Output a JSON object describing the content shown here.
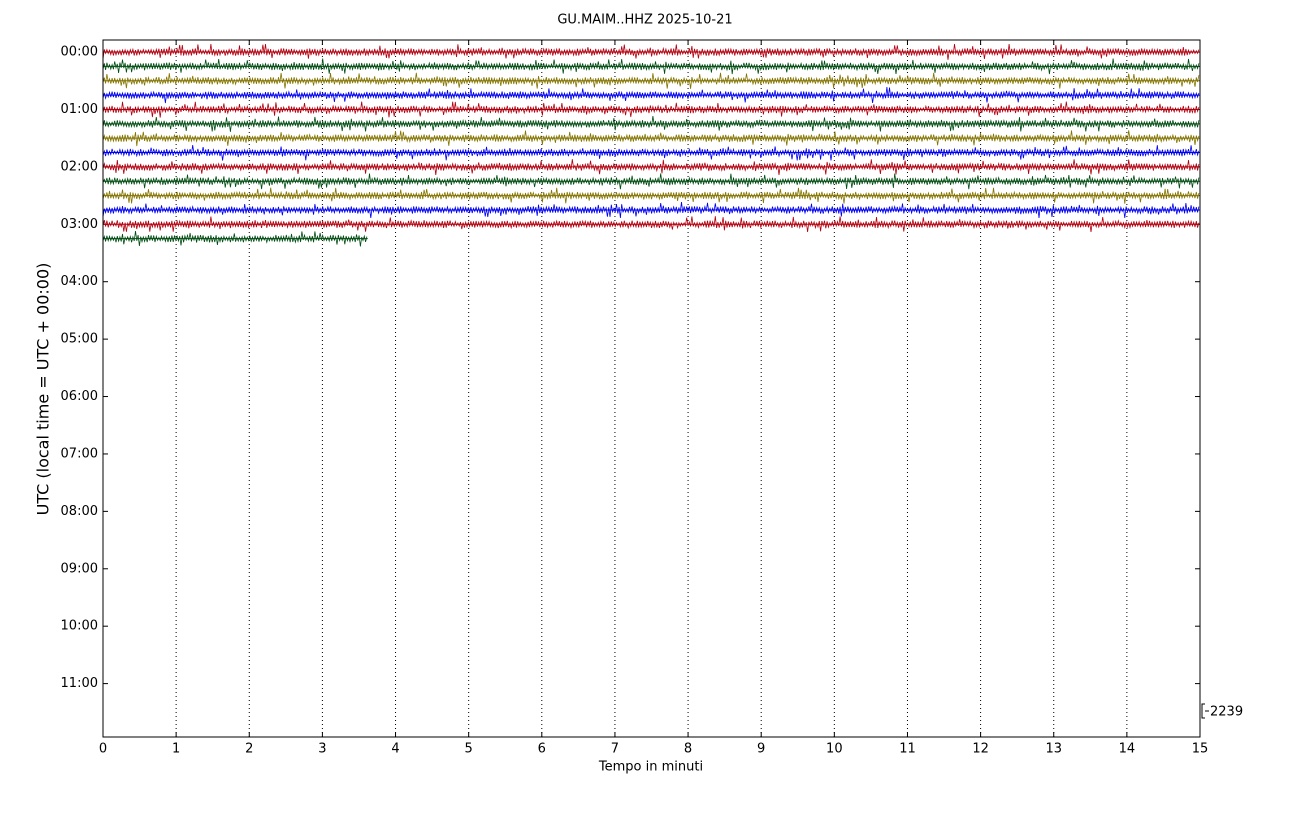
{
  "chart_data": {
    "type": "helicorder",
    "title": "GU.MAIM..HHZ 2025-10-21",
    "x_label": "Tempo in minuti",
    "y_label": "UTC (local time = UTC + 00:00)",
    "scale_label": "2239",
    "xlim": [
      0,
      15
    ],
    "xticks": [
      0,
      1,
      2,
      3,
      4,
      5,
      6,
      7,
      8,
      9,
      10,
      11,
      12,
      13,
      14,
      15
    ],
    "ylim": [
      -0.21,
      11.93
    ],
    "yticks": [
      {
        "value": 0,
        "label": "00:00"
      },
      {
        "value": 1,
        "label": "01:00"
      },
      {
        "value": 2,
        "label": "02:00"
      },
      {
        "value": 3,
        "label": "03:00"
      },
      {
        "value": 4,
        "label": "04:00"
      },
      {
        "value": 5,
        "label": "05:00"
      },
      {
        "value": 6,
        "label": "06:00"
      },
      {
        "value": 7,
        "label": "07:00"
      },
      {
        "value": 8,
        "label": "08:00"
      },
      {
        "value": 9,
        "label": "09:00"
      },
      {
        "value": 10,
        "label": "10:00"
      },
      {
        "value": 11,
        "label": "11:00"
      }
    ],
    "grid": true,
    "traces": [
      {
        "y": 0,
        "x": [
          0,
          15
        ],
        "color": "#b2000f"
      },
      {
        "y": 0.25,
        "x": [
          0,
          15
        ],
        "color": "#004c12"
      },
      {
        "y": 0.5,
        "x": [
          0,
          15
        ],
        "color": "#847400"
      },
      {
        "y": 0.75,
        "x": [
          0,
          15
        ],
        "color": "#0000f0"
      },
      {
        "y": 1,
        "x": [
          0,
          15
        ],
        "color": "#b2000f"
      },
      {
        "y": 1.25,
        "x": [
          0,
          15
        ],
        "color": "#004c12"
      },
      {
        "y": 1.5,
        "x": [
          0,
          15
        ],
        "color": "#847400"
      },
      {
        "y": 1.75,
        "x": [
          0,
          15
        ],
        "color": "#0000f0"
      },
      {
        "y": 2,
        "x": [
          0,
          15
        ],
        "color": "#b2000f"
      },
      {
        "y": 2.25,
        "x": [
          0,
          15
        ],
        "color": "#004c12"
      },
      {
        "y": 2.5,
        "x": [
          0,
          15
        ],
        "color": "#847400"
      },
      {
        "y": 2.75,
        "x": [
          0,
          15
        ],
        "color": "#0000f0"
      },
      {
        "y": 3,
        "x": [
          0,
          15
        ],
        "color": "#b2000f"
      },
      {
        "y": 3.25,
        "x": [
          0,
          3.62
        ],
        "color": "#004c12"
      }
    ]
  }
}
